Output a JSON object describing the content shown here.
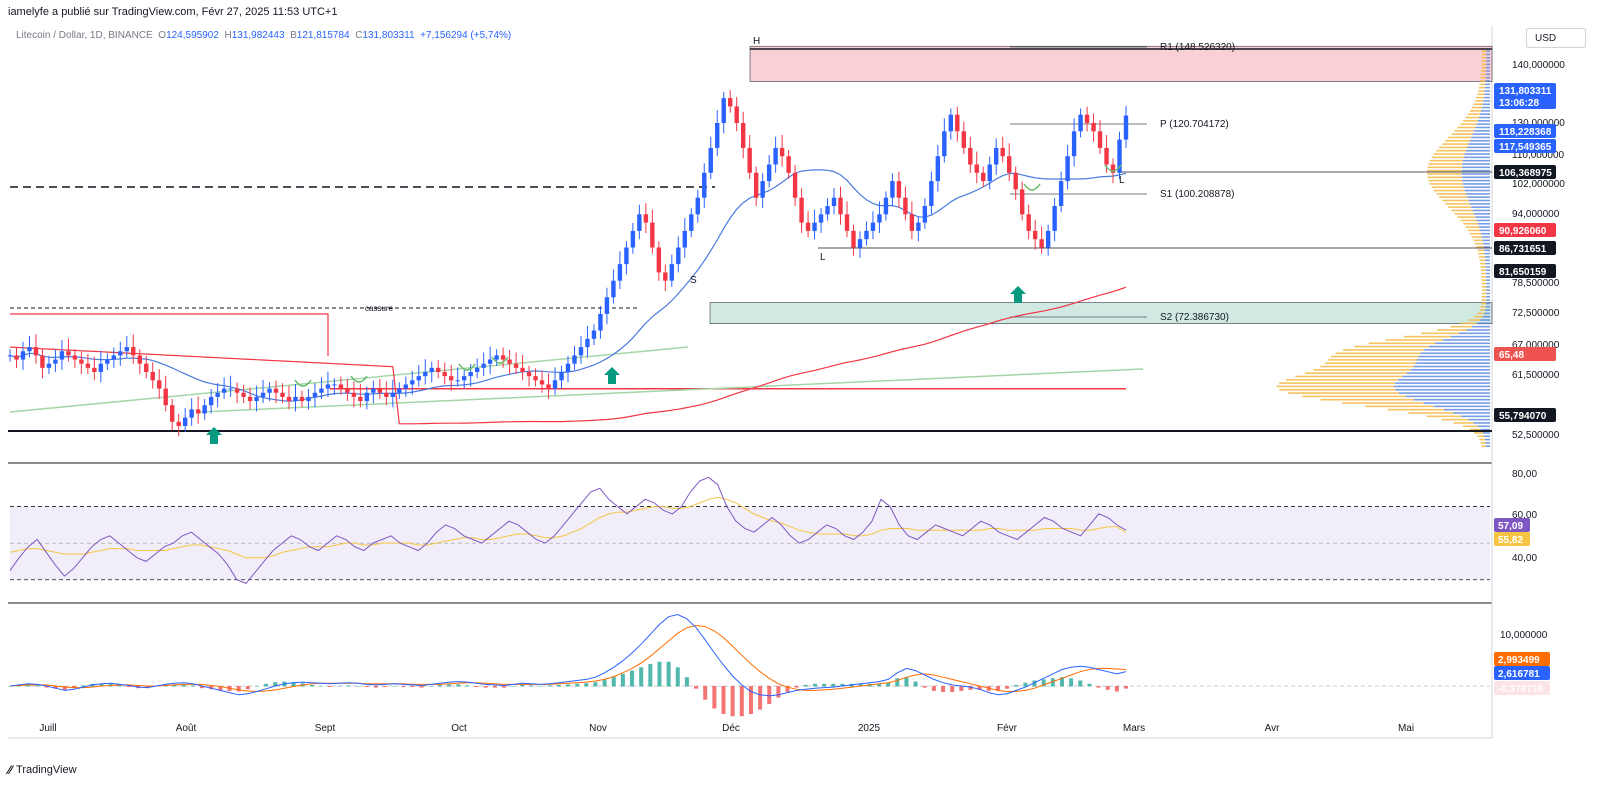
{
  "header": {
    "published": "iamelyfe a publié sur TradingView.com, Févr 27, 2025 11:53 UTC+1",
    "symbol": "Litecoin / Dollar, 1D, BINANCE",
    "o_label": "O",
    "o_value": "124,595902",
    "h_label": "H",
    "h_value": "131,982443",
    "b_label": "B",
    "b_value": "121,815784",
    "c_label": "C",
    "c_value": "131,803311",
    "change": "+7,156294 (+5,74%)",
    "currency": "USD"
  },
  "footer": {
    "brand": "TradingView"
  },
  "colors": {
    "up": "#2962ff",
    "down": "#f23645",
    "ema_blue": "#4a7bde",
    "ma_red": "#f23645",
    "trend_green": "#a5d6a7",
    "resist_zone": "#f8c8cf",
    "support_zone": "#c8e6df",
    "arrow": "#089981",
    "rsi_line": "#7e57c2",
    "rsi_ma": "#f5c542",
    "macd_line": "#2962ff",
    "signal_line": "#ff6d00"
  },
  "chart_data": [
    {
      "type": "candlestick",
      "title": "Litecoin / Dollar, 1D, BINANCE",
      "ylim": [
        50,
        150
      ],
      "x_ticks": [
        "Juill",
        "Août",
        "Sept",
        "Oct",
        "Nov",
        "Déc",
        "2025",
        "Févr",
        "Mars",
        "Avr",
        "Mai"
      ],
      "y_ticks": [
        "140,000000",
        "130,000000",
        "110,000000",
        "102,000000",
        "94,000000",
        "78,500000",
        "72,500000",
        "67,000000",
        "61,500000",
        "52,500000"
      ],
      "pivots": [
        {
          "label": "R1 (148.526320)",
          "value": 148.52632
        },
        {
          "label": "P (120.704172)",
          "value": 120.704172
        },
        {
          "label": "S1 (100.208878)",
          "value": 100.208878
        },
        {
          "label": "S2 (72.386730)",
          "value": 72.38673
        }
      ],
      "annotations": [
        "H",
        "L",
        "S",
        "L",
        "cassure"
      ],
      "price_badges": [
        {
          "value": "131,803311",
          "sub": "13:06:28",
          "color": "#2962ff"
        },
        {
          "value": "118,228368",
          "color": "#2962ff"
        },
        {
          "value": "117,549365",
          "color": "#2962ff"
        },
        {
          "value": "106,368975",
          "color": "#131722"
        },
        {
          "value": "90,926060",
          "color": "#f23645"
        },
        {
          "value": "86,731651",
          "color": "#131722"
        },
        {
          "value": "81,650159",
          "color": "#131722"
        },
        {
          "value": "65,48",
          "color": "#ef5350"
        },
        {
          "value": "55,794070",
          "color": "#131722"
        }
      ],
      "close_series": [
        74,
        73,
        75,
        76,
        74,
        71,
        72,
        73,
        75,
        74,
        73,
        72,
        71,
        70,
        72,
        73,
        74,
        75,
        76,
        74,
        72,
        70,
        68,
        66,
        62,
        58,
        57,
        59,
        61,
        60,
        62,
        64,
        65,
        66,
        66,
        65,
        64,
        63,
        64,
        65,
        66,
        65,
        64,
        63,
        64,
        63,
        64,
        65,
        66,
        67,
        67,
        66,
        65,
        64,
        63,
        65,
        66,
        65,
        64,
        65,
        66,
        67,
        68,
        69,
        70,
        71,
        70,
        69,
        68,
        68,
        69,
        70,
        71,
        72,
        73,
        74,
        73,
        72,
        71,
        70,
        69,
        68,
        67,
        66,
        68,
        70,
        72,
        74,
        76,
        78,
        80,
        84,
        88,
        92,
        96,
        100,
        104,
        108,
        106,
        100,
        94,
        92,
        96,
        100,
        104,
        108,
        112,
        118,
        124,
        130,
        136,
        134,
        130,
        124,
        118,
        112,
        116,
        120,
        124,
        122,
        118,
        112,
        106,
        104,
        106,
        108,
        110,
        112,
        108,
        104,
        100,
        102,
        104,
        106,
        108,
        112,
        116,
        112,
        108,
        104,
        106,
        110,
        116,
        122,
        128,
        132,
        128,
        124,
        120,
        118,
        116,
        120,
        124,
        122,
        118,
        114,
        108,
        104,
        102,
        100,
        104,
        110,
        116,
        122,
        128,
        132,
        130,
        128,
        124,
        120,
        118,
        126,
        131.8
      ],
      "levels": [
        {
          "name": "resistance-zone",
          "low": 140,
          "high": 148.5
        },
        {
          "name": "support-zone",
          "low": 81.65,
          "high": 86.73
        },
        {
          "name": "dashed-level",
          "value": 118.2
        },
        {
          "name": "red-level",
          "value": 65.48
        },
        {
          "name": "base-level",
          "value": 55.79
        }
      ]
    },
    {
      "type": "line",
      "title": "RSI",
      "ylim": [
        20,
        90
      ],
      "y_ticks": [
        "80,00",
        "60,00",
        "40,00"
      ],
      "band": [
        30,
        70
      ],
      "rsi": [
        35,
        42,
        48,
        52,
        45,
        38,
        32,
        36,
        42,
        48,
        52,
        54,
        50,
        46,
        42,
        40,
        44,
        48,
        50,
        54,
        56,
        52,
        48,
        44,
        38,
        30,
        28,
        34,
        40,
        46,
        50,
        54,
        52,
        48,
        46,
        50,
        54,
        52,
        48,
        46,
        50,
        52,
        54,
        50,
        48,
        46,
        50,
        56,
        60,
        58,
        54,
        52,
        50,
        54,
        58,
        62,
        60,
        56,
        52,
        50,
        54,
        60,
        66,
        72,
        78,
        80,
        74,
        70,
        66,
        70,
        74,
        72,
        68,
        66,
        70,
        78,
        84,
        86,
        82,
        70,
        62,
        58,
        56,
        60,
        64,
        60,
        54,
        50,
        52,
        56,
        60,
        58,
        54,
        52,
        56,
        62,
        74,
        70,
        60,
        54,
        52,
        56,
        60,
        58,
        56,
        54,
        58,
        62,
        60,
        56,
        54,
        52,
        56,
        60,
        64,
        62,
        58,
        56,
        54,
        60,
        66,
        64,
        60,
        57.09
      ],
      "rsi_ma": [
        45,
        46,
        47,
        47,
        46,
        45,
        44,
        44,
        44,
        45,
        46,
        47,
        47,
        47,
        46,
        46,
        46,
        46,
        47,
        48,
        49,
        49,
        48,
        47,
        46,
        44,
        42,
        42,
        42,
        43,
        45,
        46,
        47,
        48,
        48,
        48,
        49,
        50,
        50,
        49,
        49,
        50,
        50,
        50,
        50,
        49,
        49,
        50,
        51,
        52,
        53,
        53,
        52,
        52,
        53,
        54,
        55,
        55,
        54,
        53,
        53,
        54,
        56,
        58,
        61,
        64,
        66,
        67,
        67,
        68,
        69,
        70,
        70,
        69,
        69,
        70,
        72,
        74,
        75,
        74,
        72,
        69,
        66,
        64,
        62,
        61,
        59,
        57,
        56,
        55,
        55,
        55,
        55,
        54,
        54,
        55,
        57,
        58,
        58,
        58,
        57,
        57,
        57,
        57,
        57,
        57,
        57,
        57,
        58,
        58,
        57,
        57,
        57,
        57,
        58,
        58,
        58,
        58,
        57,
        57,
        58,
        59,
        59,
        55.82
      ],
      "badges": [
        "57,09",
        "55,82"
      ]
    },
    {
      "type": "macd",
      "title": "MACD",
      "y_ticks": [
        "10,000000"
      ],
      "macd": [
        0,
        0.2,
        0.4,
        0.3,
        0,
        -0.4,
        -0.8,
        -0.6,
        -0.2,
        0.2,
        0.4,
        0.5,
        0.3,
        0.1,
        -0.2,
        -0.3,
        0,
        0.3,
        0.5,
        0.6,
        0.4,
        0,
        -0.4,
        -0.8,
        -1.2,
        -1.6,
        -1.4,
        -1,
        -0.5,
        0,
        0.4,
        0.6,
        0.7,
        0.6,
        0.5,
        0.4,
        0.5,
        0.6,
        0.5,
        0.3,
        0.2,
        0.3,
        0.4,
        0.3,
        0.2,
        0.1,
        0.3,
        0.5,
        0.7,
        0.8,
        0.7,
        0.5,
        0.3,
        0.2,
        0.1,
        0.3,
        0.5,
        0.4,
        0.3,
        0.4,
        0.6,
        0.8,
        1,
        1.2,
        1.6,
        2.4,
        3.4,
        4.6,
        6,
        7.6,
        9.4,
        11.2,
        12.6,
        13,
        12.2,
        10.6,
        8.4,
        6,
        3.8,
        1.8,
        0.2,
        -1,
        -1.6,
        -1.8,
        -1.6,
        -1.2,
        -0.8,
        -0.6,
        -0.4,
        -0.3,
        -0.2,
        0,
        0.2,
        0.4,
        0.6,
        0.8,
        1.2,
        2.4,
        3.2,
        2.8,
        2,
        1.2,
        0.6,
        0.2,
        0,
        -0.2,
        -0.6,
        -1.2,
        -1.6,
        -1.4,
        -0.8,
        -0.2,
        0.6,
        1.4,
        2.2,
        3,
        3.4,
        3.6,
        3.4,
        3,
        2.6,
        2.2,
        2.616781
      ],
      "signal": [
        0,
        0.1,
        0.2,
        0.2,
        0.2,
        0,
        -0.2,
        -0.3,
        -0.3,
        -0.2,
        0,
        0.1,
        0.2,
        0.2,
        0.1,
        0,
        0,
        0.1,
        0.2,
        0.3,
        0.3,
        0.3,
        0.1,
        -0.1,
        -0.4,
        -0.7,
        -0.9,
        -1,
        -0.9,
        -0.7,
        -0.4,
        -0.1,
        0.2,
        0.4,
        0.5,
        0.5,
        0.5,
        0.5,
        0.5,
        0.4,
        0.4,
        0.4,
        0.4,
        0.4,
        0.3,
        0.3,
        0.3,
        0.3,
        0.4,
        0.5,
        0.6,
        0.6,
        0.5,
        0.4,
        0.3,
        0.3,
        0.3,
        0.3,
        0.3,
        0.3,
        0.4,
        0.5,
        0.6,
        0.7,
        0.9,
        1.2,
        1.7,
        2.4,
        3.2,
        4.2,
        5.4,
        6.8,
        8.2,
        9.6,
        10.6,
        11,
        10.8,
        10,
        8.8,
        7.2,
        5.6,
        4,
        2.6,
        1.4,
        0.4,
        -0.2,
        -0.6,
        -0.8,
        -0.8,
        -0.7,
        -0.6,
        -0.4,
        -0.2,
        0,
        0.2,
        0.4,
        0.6,
        1,
        1.6,
        2,
        2.2,
        2,
        1.6,
        1.2,
        0.8,
        0.4,
        0,
        -0.4,
        -0.8,
        -1,
        -1,
        -0.8,
        -0.4,
        0.2,
        0.8,
        1.4,
        2,
        2.6,
        3,
        3.2,
        3.2,
        3.1,
        2.993499
      ],
      "badges": [
        "2,993499",
        "2,616781",
        "-0,376718"
      ]
    }
  ]
}
